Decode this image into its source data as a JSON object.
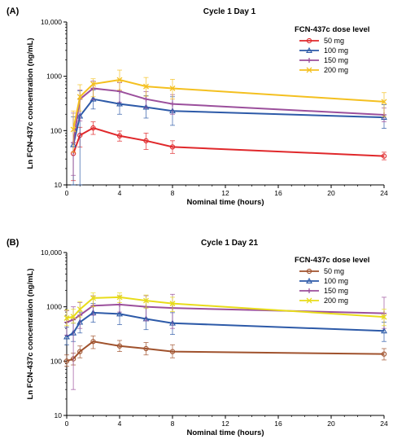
{
  "chart_data": [
    {
      "type": "line",
      "panel_label": "(A)",
      "title": "Cycle 1 Day 1",
      "xlabel": "Nominal time (hours)",
      "ylabel": "Ln FCN-437c concentration (ng/mL)",
      "yscale": "log",
      "xlim": [
        0,
        24
      ],
      "ylim": [
        10,
        10000
      ],
      "x_ticks": [
        0,
        4,
        8,
        12,
        16,
        20,
        24
      ],
      "x_tick_labels": [
        "0",
        "4",
        "8",
        "12",
        "16",
        "20",
        "24"
      ],
      "y_ticks": [
        10,
        100,
        1000,
        10000
      ],
      "y_tick_labels": [
        "10",
        "100",
        "1000",
        "10,000"
      ],
      "grid": false,
      "legend": {
        "title": "FCN-437c dose level",
        "position": "top-right"
      },
      "series": [
        {
          "name": "50 mg",
          "color": "#e0282b",
          "marker": "circle",
          "x": [
            0.5,
            1,
            2,
            4,
            6,
            8,
            24
          ],
          "y": [
            38,
            82,
            112,
            80,
            65,
            50,
            34
          ],
          "err_low": [
            12,
            50,
            85,
            64,
            45,
            38,
            29
          ],
          "err_high": [
            60,
            115,
            145,
            98,
            90,
            65,
            40
          ]
        },
        {
          "name": "100 mg",
          "color": "#2d5aa8",
          "marker": "triangle",
          "x": [
            0.5,
            1,
            2,
            4,
            6,
            8,
            24
          ],
          "y": [
            55,
            185,
            380,
            310,
            270,
            230,
            175
          ],
          "err_low": [
            10,
            10,
            250,
            200,
            170,
            125,
            110
          ],
          "err_high": [
            180,
            540,
            560,
            520,
            440,
            420,
            300
          ]
        },
        {
          "name": "150 mg",
          "color": "#9b4f9c",
          "marker": "plus",
          "x": [
            0.5,
            1,
            2,
            4,
            6,
            8,
            24
          ],
          "y": [
            60,
            380,
            600,
            530,
            380,
            310,
            195
          ],
          "err_low": [
            15,
            150,
            370,
            330,
            260,
            200,
            145
          ],
          "err_high": [
            210,
            560,
            820,
            760,
            520,
            460,
            260
          ]
        },
        {
          "name": "200 mg",
          "color": "#f4c020",
          "marker": "x",
          "x": [
            0.5,
            1,
            2,
            4,
            6,
            8,
            24
          ],
          "y": [
            105,
            420,
            720,
            860,
            650,
            600,
            340
          ],
          "err_low": [
            40,
            230,
            420,
            560,
            430,
            380,
            180
          ],
          "err_high": [
            230,
            700,
            900,
            1300,
            950,
            880,
            500
          ]
        }
      ]
    },
    {
      "type": "line",
      "panel_label": "(B)",
      "title": "Cycle 1 Day 21",
      "xlabel": "Nominal time (hours)",
      "ylabel": "Ln FCN-437c concentration (ng/mL)",
      "yscale": "log",
      "xlim": [
        0,
        24
      ],
      "ylim": [
        10,
        10000
      ],
      "x_ticks": [
        0,
        4,
        8,
        12,
        16,
        20,
        24
      ],
      "x_tick_labels": [
        "0",
        "4",
        "8",
        "12",
        "16",
        "20",
        "24"
      ],
      "y_ticks": [
        10,
        100,
        1000,
        10000
      ],
      "y_tick_labels": [
        "10",
        "100",
        "1000",
        "10,000"
      ],
      "grid": false,
      "legend": {
        "title": "FCN-437c dose level",
        "position": "top-right"
      },
      "series": [
        {
          "name": "50 mg",
          "color": "#a0522d",
          "marker": "circle",
          "x": [
            0,
            0.5,
            1,
            2,
            4,
            6,
            8,
            24
          ],
          "y": [
            100,
            110,
            150,
            230,
            190,
            170,
            150,
            135
          ],
          "err_low": [
            80,
            85,
            115,
            170,
            150,
            130,
            115,
            105
          ],
          "err_high": [
            130,
            140,
            190,
            290,
            240,
            220,
            200,
            170
          ]
        },
        {
          "name": "100 mg",
          "color": "#2d5aa8",
          "marker": "triangle",
          "x": [
            0,
            0.5,
            1,
            2,
            4,
            6,
            8,
            24
          ],
          "y": [
            280,
            330,
            520,
            780,
            740,
            600,
            500,
            360
          ],
          "err_low": [
            200,
            230,
            330,
            520,
            470,
            380,
            310,
            230
          ],
          "err_high": [
            420,
            500,
            800,
            1150,
            1120,
            950,
            780,
            520
          ]
        },
        {
          "name": "150 mg",
          "color": "#9b4f9c",
          "marker": "plus",
          "x": [
            0,
            0.5,
            1,
            2,
            4,
            6,
            8,
            24
          ],
          "y": [
            520,
            580,
            700,
            1050,
            1100,
            1000,
            950,
            760
          ],
          "err_low": [
            300,
            30,
            400,
            700,
            800,
            550,
            400,
            400
          ],
          "err_high": [
            850,
            1000,
            1200,
            1600,
            1600,
            1600,
            1700,
            1500
          ]
        },
        {
          "name": "200 mg",
          "color": "#e8dc1a",
          "marker": "x",
          "x": [
            0,
            0.5,
            1,
            2,
            4,
            6,
            8,
            24
          ],
          "y": [
            620,
            660,
            900,
            1450,
            1500,
            1300,
            1150,
            650
          ],
          "err_low": [
            450,
            500,
            650,
            1000,
            1200,
            950,
            820,
            450
          ],
          "err_high": [
            880,
            900,
            1250,
            1800,
            1800,
            1650,
            1500,
            900
          ]
        }
      ]
    }
  ]
}
